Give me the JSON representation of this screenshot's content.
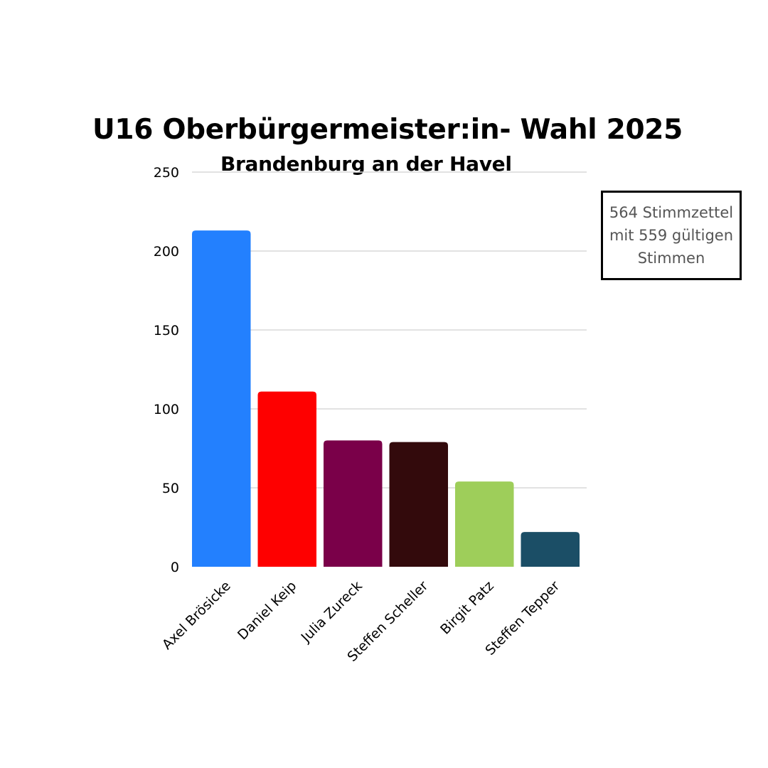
{
  "chart_data": {
    "type": "bar",
    "title": "U16 Oberbürgermeister:in- Wahl 2025",
    "subtitle": "Brandenburg an der Havel",
    "xlabel": "",
    "ylabel": "",
    "categories": [
      "Axel Brösicke",
      "Daniel Keip",
      "Julia Zureck",
      "Steffen Scheller",
      "Birgit Patz",
      "Steffen Tepper"
    ],
    "values": [
      213,
      111,
      80,
      79,
      54,
      22
    ],
    "colors": [
      "#2380FE",
      "#FE0000",
      "#7A0049",
      "#330A0C",
      "#9ECE5A",
      "#1B4E66"
    ],
    "ylim": [
      0,
      250
    ],
    "yticks": [
      0,
      50,
      100,
      150,
      200,
      250
    ],
    "grid": true,
    "legend": "none"
  },
  "info_box": {
    "text": "564 Stimmzettel\nmit 559 gültigen\nStimmen"
  }
}
